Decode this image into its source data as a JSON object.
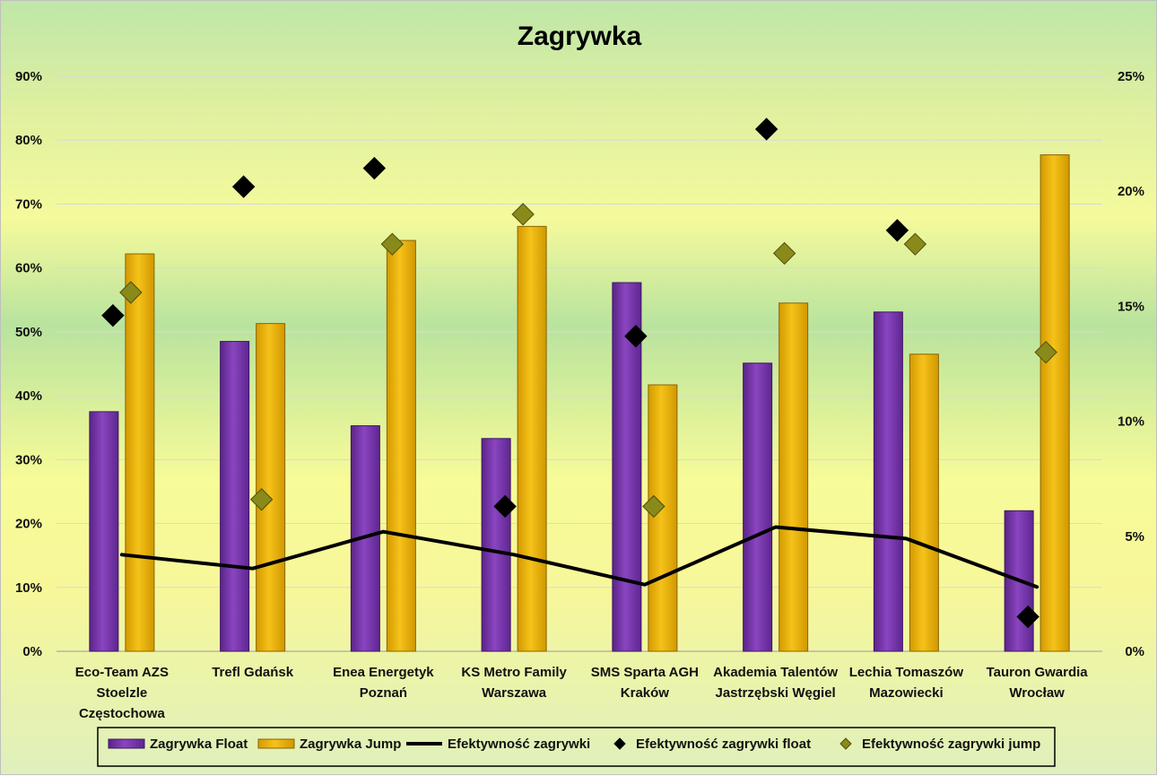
{
  "chart_data": {
    "type": "bar",
    "title": "Zagrywka",
    "categories": [
      [
        "Eco-Team AZS",
        "Stoelzle",
        "Częstochowa"
      ],
      [
        "Trefl Gdańsk"
      ],
      [
        "Enea Energetyk",
        "Poznań"
      ],
      [
        "KS Metro Family",
        "Warszawa"
      ],
      [
        "SMS Sparta AGH",
        "Kraków"
      ],
      [
        "Akademia Talentów",
        "Jastrzębski Węgiel"
      ],
      [
        "Lechia Tomaszów",
        "Mazowiecki"
      ],
      [
        "Tauron Gwardia",
        "Wrocław"
      ]
    ],
    "y_left": {
      "min": 0,
      "max": 0.9,
      "step": 0.1,
      "tick_labels": [
        "0%",
        "10%",
        "20%",
        "30%",
        "40%",
        "50%",
        "60%",
        "70%",
        "80%",
        "90%"
      ]
    },
    "y_right": {
      "min": 0,
      "max": 0.25,
      "step": 0.05,
      "tick_labels": [
        "0%",
        "5%",
        "10%",
        "15%",
        "20%",
        "25%"
      ]
    },
    "grid": true,
    "legend_position": "bottom",
    "series": [
      {
        "name": "Zagrywka Float",
        "kind": "bar",
        "axis": "left",
        "color": "#7030a0",
        "values": [
          0.375,
          0.485,
          0.353,
          0.333,
          0.577,
          0.451,
          0.531,
          0.22
        ]
      },
      {
        "name": "Zagrywka Jump",
        "kind": "bar",
        "axis": "left",
        "color": "#e6b000",
        "values": [
          0.622,
          0.513,
          0.643,
          0.665,
          0.417,
          0.545,
          0.465,
          0.777
        ]
      },
      {
        "name": "Efektywność zagrywki",
        "kind": "line",
        "axis": "right",
        "color": "#000000",
        "values": [
          0.042,
          0.036,
          0.052,
          0.042,
          0.029,
          0.054,
          0.049,
          0.028
        ]
      },
      {
        "name": "Efektywność zagrywki float",
        "kind": "marker",
        "axis": "right",
        "color": "#000000",
        "values": [
          0.146,
          0.202,
          0.21,
          0.063,
          0.137,
          0.227,
          0.183,
          0.015
        ]
      },
      {
        "name": "Efektywność zagrywki jump",
        "kind": "marker",
        "axis": "right",
        "color": "#8a8a1a",
        "values": [
          0.156,
          0.066,
          0.177,
          0.19,
          0.063,
          0.173,
          0.177,
          0.13
        ]
      }
    ]
  }
}
